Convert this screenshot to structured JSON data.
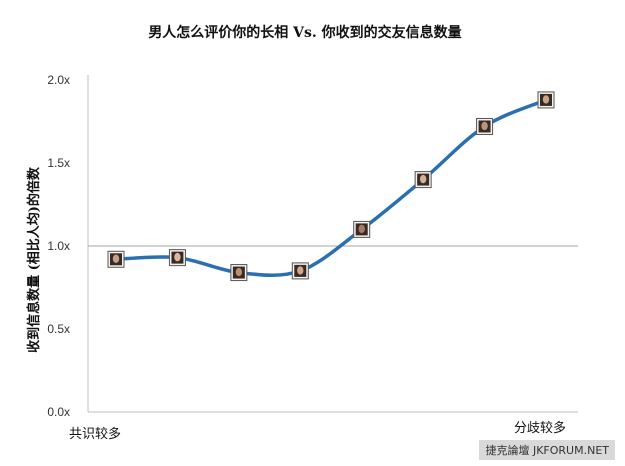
{
  "chart_data": {
    "type": "line",
    "title": "男人怎么评价你的长相 Vs. 你收到的交友信息数量",
    "ylabel": "收到信息数量 (相比人均)的倍数",
    "x_tick_labels": [
      "共识较多",
      "分歧较多"
    ],
    "y_tick_labels": [
      "0.0x",
      "0.5x",
      "1.0x",
      "1.5x",
      "2.0x"
    ],
    "ylim": [
      0,
      2.0
    ],
    "reference_line": 1.0,
    "series": [
      {
        "x": [
          1,
          2,
          3,
          4,
          5,
          6,
          7,
          8
        ],
        "values": [
          0.92,
          0.93,
          0.84,
          0.85,
          1.1,
          1.4,
          1.72,
          1.88
        ]
      }
    ],
    "line_color": "#2a6fb0",
    "marker": "photo-thumbnail",
    "grid": false
  },
  "watermark": "捷克論壇 JKFORUM.NET"
}
